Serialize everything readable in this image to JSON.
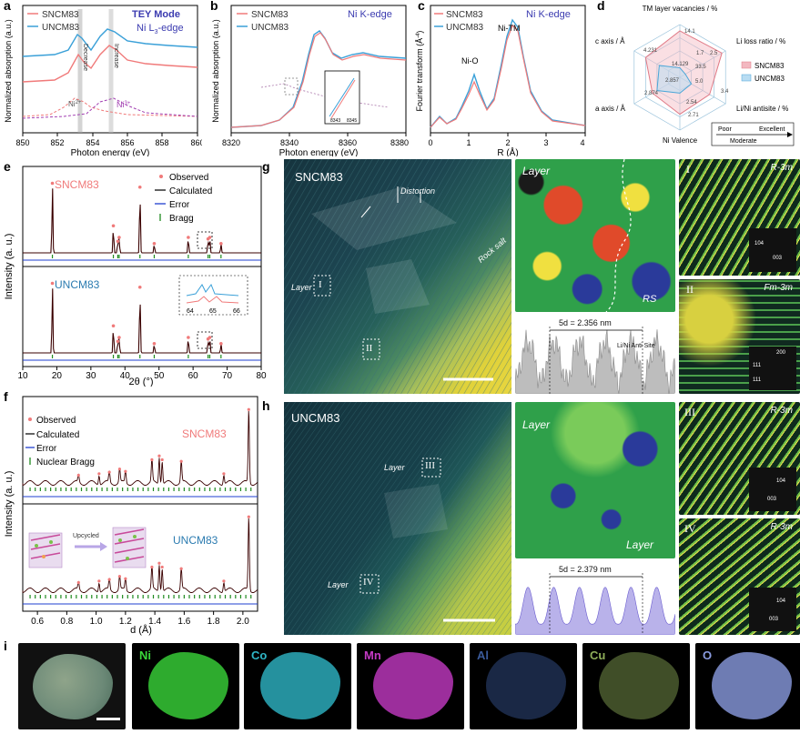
{
  "panel_labels": {
    "a": "a",
    "b": "b",
    "c": "c",
    "d": "d",
    "e": "e",
    "f": "f",
    "g": "g",
    "h": "h",
    "i": "i"
  },
  "colors": {
    "sncm": "#f07a7a",
    "uncm": "#3aa0d8",
    "ni3": "#a23fb2",
    "ni_k_label": "#3b3bb0",
    "calc": "#2a0000",
    "error": "#1f3fd0",
    "bragg": "#1e8a1e",
    "uncm_text": "#2b7bb0"
  },
  "panel_a": {
    "legend": [
      "SNCM83",
      "UNCM83"
    ],
    "mode": "TEY Mode",
    "edge": "Ni L",
    "edge_sub": "3",
    "edge_suffix": "-edge",
    "ann_decrease": "Decrease",
    "ann_increase": "Increase",
    "ni2": "Ni",
    "ni2_sup": "2+",
    "ni3": "Ni",
    "ni3_sup": "3+",
    "ylabel": "Normalized absorption (a.u.)",
    "xlabel": "Photon energy (eV)",
    "xticks": [
      "850",
      "852",
      "854",
      "856",
      "858",
      "860"
    ]
  },
  "panel_b": {
    "legend": [
      "SNCM83",
      "UNCM83"
    ],
    "title": "Ni K-edge",
    "ylabel": "Normalized absorption (a.u.)",
    "xlabel": "Photon energy (eV)",
    "xticks": [
      "8320",
      "8340",
      "8360",
      "8380"
    ],
    "inset_ticks": [
      "8343",
      "8345"
    ]
  },
  "panel_c": {
    "legend": [
      "SNCM83",
      "UNCM83"
    ],
    "title": "Ni K-edge",
    "ann_nio": "Ni-O",
    "ann_nitm": "Ni-TM",
    "ylabel": "Fourier transform (Å",
    "ylabel_sup": "-4",
    "ylabel_end": ")",
    "xlabel": "R (Å)",
    "xticks": [
      "0",
      "1",
      "2",
      "3",
      "4"
    ]
  },
  "panel_d": {
    "axes": [
      "TM layer vacancies / %",
      "Li loss ratio / %",
      "Li/Ni antisite / %",
      "Ni Valence",
      "a axis / Å",
      "c axis / Å"
    ],
    "values": [
      "4.231",
      "14.1",
      "2.5",
      "1.7",
      "14.129",
      "33.5",
      "2.857",
      "5.0",
      "2.874",
      "2.54",
      "3.4",
      "2.71"
    ],
    "legend": [
      "SNCM83",
      "UNCM83"
    ],
    "scale": [
      "Poor",
      "Excellent",
      "Moderate"
    ],
    "snc_r": [
      0.88,
      0.92,
      0.65,
      0.7,
      0.6,
      0.75
    ],
    "unc_r": [
      0.18,
      0.12,
      0.25,
      0.3,
      0.5,
      0.45
    ]
  },
  "panel_e": {
    "sample_top": "SNCM83",
    "sample_bottom": "UNCM83",
    "legend": [
      "Observed",
      "Calculated",
      "Error",
      "Bragg"
    ],
    "ylabel": "Intensity (a. u.)",
    "xlabel": "2θ (°)",
    "xticks": [
      "10",
      "20",
      "30",
      "40",
      "50",
      "60",
      "70",
      "80"
    ],
    "inset_ticks": [
      "64",
      "65",
      "66"
    ],
    "peaks": [
      18.7,
      36.6,
      37.9,
      38.3,
      44.4,
      48.6,
      58.6,
      64.4,
      64.9,
      68.2
    ]
  },
  "panel_f": {
    "legend": [
      "Observed",
      "Calculated",
      "Error",
      "Nuclear Bragg"
    ],
    "sample_top": "SNCM83",
    "sample_bottom": "UNCM83",
    "upcycled": "Upcycled",
    "ylabel": "Intensity (a. u.)",
    "xlabel": "d (Å)",
    "xticks": [
      "0.6",
      "0.8",
      "1.0",
      "1.2",
      "1.4",
      "1.6",
      "1.8",
      "2.0"
    ]
  },
  "panel_g": {
    "sample": "SNCM83",
    "distortion": "Distortion",
    "rock_salt": "Rock salt",
    "layer": "Layer",
    "roman1": "I",
    "roman2": "II",
    "map_layer": "Layer",
    "map_rs": "RS",
    "profile": "5d = 2.356 nm",
    "antisite": "Li/Ni Anti Site",
    "fft1_label": "I",
    "fft1_group": "R-3m",
    "fft2_label": "II",
    "fft2_group": "Fm-3m",
    "fft1_spots": [
      "104",
      "003"
    ],
    "fft2_spots": [
      "200",
      "111",
      "111"
    ]
  },
  "panel_h": {
    "sample": "UNCM83",
    "layer1": "Layer",
    "roman3": "III",
    "layer2": "Layer",
    "roman4": "IV",
    "map_layer1": "Layer",
    "map_layer2": "Layer",
    "profile": "5d = 2.379 nm",
    "fft3_label": "III",
    "fft3_group": "R-3m",
    "fft4_label": "IV",
    "fft4_group": "R-3m",
    "fft3_spots": [
      "104",
      "003"
    ],
    "fft4_spots": [
      "104",
      "003"
    ]
  },
  "panel_i": {
    "elements": [
      "Ni",
      "Co",
      "Mn",
      "Al",
      "Cu",
      "O"
    ],
    "element_colors": [
      "#3ad63a",
      "#2fb6c6",
      "#c43ac4",
      "#3a5a9a",
      "#8fae5a",
      "#8a9be0"
    ]
  }
}
